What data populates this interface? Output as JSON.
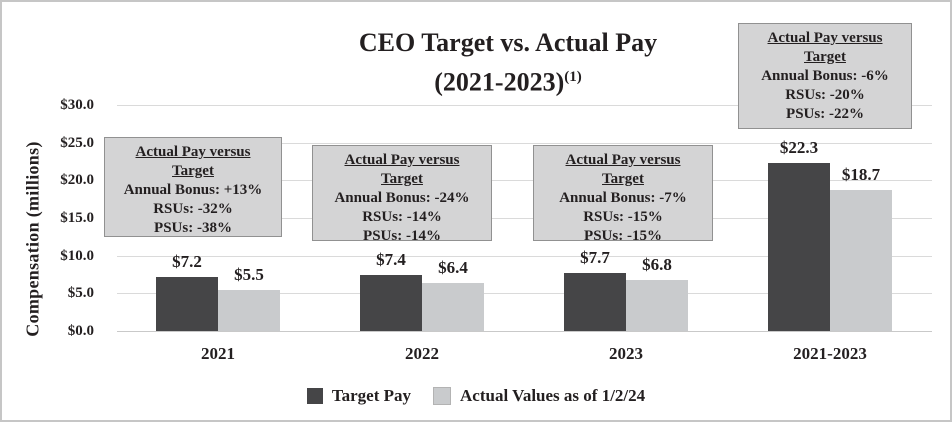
{
  "title": {
    "line1": "CEO Target vs. Actual Pay",
    "line2": "(2021-2023)",
    "superscript": "(1)"
  },
  "chart_data": {
    "type": "bar",
    "title": "CEO Target vs. Actual Pay (2021-2023)(1)",
    "ylabel": "Compensation (millions)",
    "ylim": [
      0,
      30
    ],
    "ytick_step": 5,
    "ytick_labels": [
      "$0.0",
      "$5.0",
      "$10.0",
      "$15.0",
      "$20.0",
      "$25.0",
      "$30.0"
    ],
    "grid": true,
    "legend_position": "bottom",
    "categories": [
      "2021",
      "2022",
      "2023",
      "2021-2023"
    ],
    "series": [
      {
        "name": "Target Pay",
        "color": "#454547",
        "values": [
          7.2,
          7.4,
          7.7,
          22.3
        ],
        "value_labels": [
          "$7.2",
          "$7.4",
          "$7.7",
          "$22.3"
        ]
      },
      {
        "name": "Actual Values as of 1/2/24",
        "color": "#c9cbcd",
        "values": [
          5.5,
          6.4,
          6.8,
          18.7
        ],
        "value_labels": [
          "$5.5",
          "$6.4",
          "$6.8",
          "$18.7"
        ]
      }
    ],
    "annotations": [
      {
        "heading_line1": "Actual Pay versus",
        "heading_line2": "Target",
        "lines": [
          "Annual Bonus: +13%",
          "RSUs: -32%",
          "PSUs: -38%"
        ]
      },
      {
        "heading_line1": "Actual Pay versus",
        "heading_line2": "Target",
        "lines": [
          "Annual Bonus: -24%",
          "RSUs: -14%",
          "PSUs: -14%"
        ]
      },
      {
        "heading_line1": "Actual Pay versus",
        "heading_line2": "Target",
        "lines": [
          "Annual Bonus: -7%",
          "RSUs: -15%",
          "PSUs: -15%"
        ]
      },
      {
        "heading_line1": "Actual Pay versus",
        "heading_line2": "Target",
        "lines": [
          "Annual Bonus: -6%",
          "RSUs: -20%",
          "PSUs: -22%"
        ]
      }
    ],
    "colors": {
      "target_bar": "#454547",
      "actual_bar": "#c9cbcd",
      "annotation_fill": "#d4d4d5",
      "annotation_border": "#919191",
      "gridline": "#dadada",
      "baseline": "#c9c9c9"
    }
  }
}
